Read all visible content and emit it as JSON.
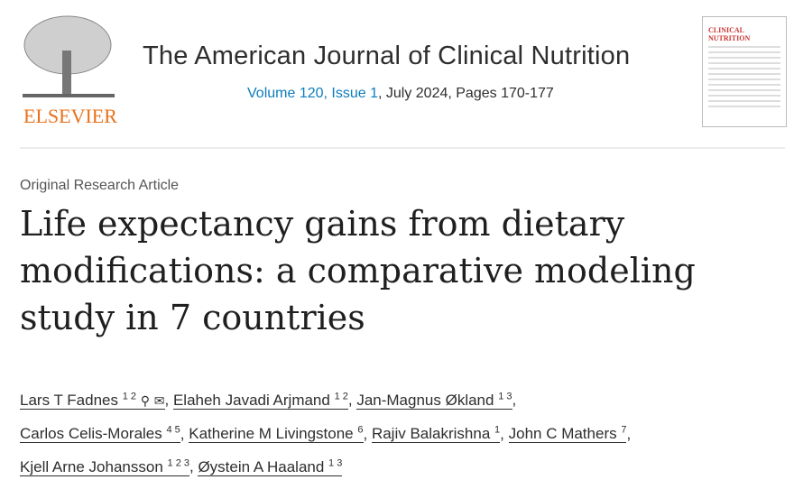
{
  "publisher": {
    "logo_text": "ELSEVIER"
  },
  "journal": {
    "title": "The American Journal of Clinical Nutrition",
    "volume_issue": "Volume 120, Issue 1",
    "rest": ", July 2024, Pages 170-177",
    "cover_text": "CLINICAL NUTRITION"
  },
  "article": {
    "type": "Original Research Article",
    "title": "Life expectancy gains from dietary modifications: a comparative modeling study in 7 countries"
  },
  "authors": [
    {
      "name": "Lars T Fadnes",
      "sup": "1 2"
    },
    {
      "name": "Elaheh Javadi Arjmand",
      "sup": "1 2"
    },
    {
      "name": "Jan-Magnus Økland",
      "sup": "1 3"
    },
    {
      "name": "Carlos Celis-Morales",
      "sup": "4 5"
    },
    {
      "name": "Katherine M Livingstone",
      "sup": "6"
    },
    {
      "name": "Rajiv Balakrishna",
      "sup": "1"
    },
    {
      "name": "John C Mathers",
      "sup": "7"
    },
    {
      "name": "Kjell Arne Johansson",
      "sup": "1 2 3"
    },
    {
      "name": "Øystein A Haaland",
      "sup": "1 3"
    }
  ]
}
